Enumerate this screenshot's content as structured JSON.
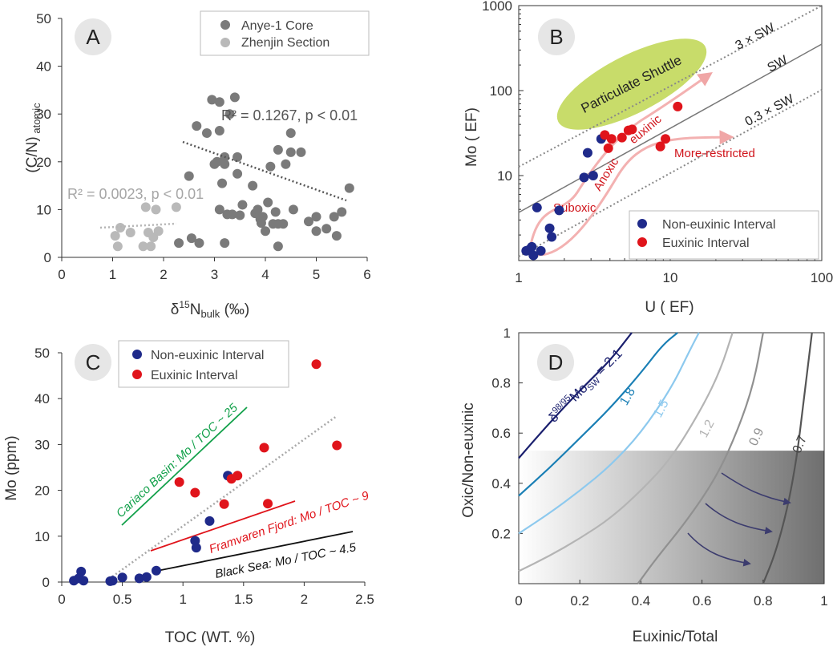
{
  "chart_data": [
    {
      "type": "scatter",
      "panel_label": "A",
      "xlabel": "δ15Nbulk (‰)",
      "ylabel": "(C/N) atomic",
      "xlim": [
        0,
        6
      ],
      "ylim": [
        0,
        50
      ],
      "xticks": [
        "0",
        "1",
        "2",
        "3",
        "4",
        "5",
        "6"
      ],
      "yticks": [
        "0",
        "10",
        "20",
        "30",
        "40",
        "50"
      ],
      "grid": false,
      "legend_position": "top-right",
      "series": [
        {
          "name": "Anye-1 Core",
          "color": "#7a7a7a",
          "points": [
            [
              2.3,
              3
            ],
            [
              2.5,
              17
            ],
            [
              2.55,
              4
            ],
            [
              2.65,
              27.5
            ],
            [
              2.7,
              3
            ],
            [
              2.85,
              26
            ],
            [
              2.95,
              33
            ],
            [
              3.0,
              19.5
            ],
            [
              3.05,
              20
            ],
            [
              3.1,
              26.5
            ],
            [
              3.1,
              32.5
            ],
            [
              3.1,
              10
            ],
            [
              3.15,
              15.5
            ],
            [
              3.2,
              21
            ],
            [
              3.2,
              19.5
            ],
            [
              3.2,
              3
            ],
            [
              3.25,
              9
            ],
            [
              3.3,
              30
            ],
            [
              3.35,
              9
            ],
            [
              3.4,
              33.5
            ],
            [
              3.45,
              21
            ],
            [
              3.45,
              17.5
            ],
            [
              3.5,
              8.8
            ],
            [
              3.55,
              11
            ],
            [
              3.75,
              15
            ],
            [
              3.8,
              9.2
            ],
            [
              3.85,
              10
            ],
            [
              3.9,
              8
            ],
            [
              3.92,
              7.2
            ],
            [
              3.95,
              8.5
            ],
            [
              4.0,
              5.5
            ],
            [
              4.05,
              11.5
            ],
            [
              4.1,
              19
            ],
            [
              4.15,
              7
            ],
            [
              4.2,
              9.5
            ],
            [
              4.25,
              7
            ],
            [
              4.25,
              2.3
            ],
            [
              4.25,
              22.5
            ],
            [
              4.35,
              7
            ],
            [
              4.4,
              19.5
            ],
            [
              4.5,
              26
            ],
            [
              4.5,
              22
            ],
            [
              4.55,
              10
            ],
            [
              4.7,
              22
            ],
            [
              4.85,
              7.5
            ],
            [
              5.0,
              8.5
            ],
            [
              5.0,
              5.5
            ],
            [
              5.2,
              6
            ],
            [
              5.35,
              8.5
            ],
            [
              5.4,
              4.5
            ],
            [
              5.5,
              9.5
            ],
            [
              5.65,
              14.5
            ]
          ]
        },
        {
          "name": "Zhenjin Section",
          "color": "#b9b9b9",
          "points": [
            [
              1.05,
              4.5
            ],
            [
              1.1,
              2.3
            ],
            [
              1.15,
              6.2
            ],
            [
              1.35,
              5.2
            ],
            [
              1.6,
              2.3
            ],
            [
              1.65,
              10.5
            ],
            [
              1.7,
              5.2
            ],
            [
              1.75,
              2.3
            ],
            [
              1.8,
              4.2
            ],
            [
              1.85,
              10
            ],
            [
              1.9,
              5.5
            ],
            [
              2.25,
              10.5
            ]
          ]
        }
      ],
      "annotations": [
        "R² = 0.1267, p < 0.01",
        "R² = 0.0023, p < 0.01"
      ]
    },
    {
      "type": "scatter",
      "panel_label": "B",
      "scale": "log-log",
      "xlabel": "U ( EF)",
      "ylabel": "Mo ( EF)",
      "xlim": [
        1,
        100
      ],
      "ylim": [
        1,
        1000
      ],
      "xticks": [
        "1",
        "10",
        "100"
      ],
      "yticks": [
        "10",
        "100",
        "1000"
      ],
      "legend_position": "bottom-right",
      "series": [
        {
          "name": "Non-euxinic Interval",
          "color": "#1f2a8a",
          "points": [
            [
              1.12,
              1.3
            ],
            [
              1.18,
              1.35
            ],
            [
              1.22,
              1.45
            ],
            [
              1.25,
              1.15
            ],
            [
              1.32,
              4.2
            ],
            [
              1.4,
              1.3
            ],
            [
              1.6,
              2.4
            ],
            [
              1.65,
              1.9
            ],
            [
              1.85,
              3.9
            ],
            [
              2.7,
              9.5
            ],
            [
              2.85,
              18.5
            ],
            [
              3.1,
              10
            ],
            [
              3.5,
              27
            ]
          ]
        },
        {
          "name": "Euxinic Interval",
          "color": "#e0141b",
          "points": [
            [
              3.7,
              30
            ],
            [
              3.9,
              21
            ],
            [
              4.1,
              27
            ],
            [
              4.8,
              28
            ],
            [
              5.3,
              34
            ],
            [
              5.6,
              35
            ],
            [
              8.6,
              22
            ],
            [
              9.3,
              27
            ],
            [
              11.2,
              65
            ]
          ]
        }
      ],
      "annotations": [
        "3 × SW",
        "SW",
        "0.3 × SW",
        "Particulate Shuttle",
        "Suboxic",
        "Anoxic",
        "euxinic",
        "More-restricted"
      ]
    },
    {
      "type": "scatter",
      "panel_label": "C",
      "xlabel": "TOC (WT. %)",
      "ylabel": "Mo (ppm)",
      "xlim": [
        0,
        2.5
      ],
      "ylim": [
        0,
        50
      ],
      "xticks": [
        "0",
        "0.5",
        "1",
        "1.5",
        "2",
        "2.5"
      ],
      "yticks": [
        "0",
        "10",
        "20",
        "30",
        "40",
        "50"
      ],
      "legend_position": "top-left",
      "series": [
        {
          "name": "Non-euxinic Interval",
          "color": "#1f2a8a",
          "points": [
            [
              0.1,
              0.3
            ],
            [
              0.14,
              0.8
            ],
            [
              0.16,
              2.3
            ],
            [
              0.18,
              0.3
            ],
            [
              0.4,
              0.2
            ],
            [
              0.42,
              0.3
            ],
            [
              0.5,
              1
            ],
            [
              0.64,
              0.8
            ],
            [
              0.7,
              1.1
            ],
            [
              0.78,
              2.5
            ],
            [
              1.1,
              9
            ],
            [
              1.11,
              7.5
            ],
            [
              1.22,
              13.3
            ],
            [
              1.37,
              23.2
            ]
          ]
        },
        {
          "name": "Euxinic Interval",
          "color": "#e0141b",
          "points": [
            [
              0.97,
              21.8
            ],
            [
              1.1,
              19.5
            ],
            [
              1.34,
              17
            ],
            [
              1.4,
              22.5
            ],
            [
              1.45,
              23.2
            ],
            [
              1.67,
              29.3
            ],
            [
              1.7,
              17.1
            ],
            [
              2.1,
              47.5
            ],
            [
              2.27,
              29.8
            ]
          ]
        }
      ],
      "annotations": [
        "Cariaco Basin: Mo / TOC ~ 25",
        "Framvaren Fjord: Mo / TOC ~ 9",
        "Black Sea: Mo / TOC ~ 4.5"
      ]
    },
    {
      "type": "line",
      "panel_label": "D",
      "xlabel": "Euxinic/Total",
      "ylabel": "Oxic/Non-euxinic",
      "xlim": [
        0,
        1
      ],
      "ylim": [
        0,
        1
      ],
      "xticks": [
        "0",
        "0.2",
        "0.4",
        "0.6",
        "0.8",
        "1"
      ],
      "yticks": [
        "0.2",
        "0.4",
        "0.6",
        "0.8",
        "1"
      ],
      "series": [
        {
          "name": "δ98/95MoSW = 2.1",
          "color": "#1a1f6e",
          "points": [
            [
              0,
              0.5
            ],
            [
              0.1,
              0.64
            ],
            [
              0.2,
              0.77
            ],
            [
              0.3,
              0.89
            ],
            [
              0.37,
              1.0
            ]
          ]
        },
        {
          "name": "1.8",
          "color": "#1a7fb5",
          "points": [
            [
              0,
              0.35
            ],
            [
              0.1,
              0.46
            ],
            [
              0.2,
              0.58
            ],
            [
              0.3,
              0.7
            ],
            [
              0.4,
              0.84
            ],
            [
              0.47,
              0.95
            ],
            [
              0.52,
              1.0
            ]
          ]
        },
        {
          "name": "1.5",
          "color": "#8dc9ee",
          "points": [
            [
              0,
              0.2
            ],
            [
              0.1,
              0.28
            ],
            [
              0.2,
              0.37
            ],
            [
              0.3,
              0.47
            ],
            [
              0.4,
              0.6
            ],
            [
              0.5,
              0.78
            ],
            [
              0.56,
              0.93
            ],
            [
              0.59,
              1.0
            ]
          ]
        },
        {
          "name": "1.2",
          "color": "#b4b4b4",
          "points": [
            [
              0,
              0.05
            ],
            [
              0.1,
              0.11
            ],
            [
              0.2,
              0.18
            ],
            [
              0.3,
              0.26
            ],
            [
              0.4,
              0.37
            ],
            [
              0.5,
              0.5
            ],
            [
              0.6,
              0.7
            ],
            [
              0.66,
              0.85
            ],
            [
              0.7,
              1.0
            ]
          ]
        },
        {
          "name": "0.9",
          "color": "#909090",
          "points": [
            [
              0.39,
              0
            ],
            [
              0.45,
              0.1
            ],
            [
              0.55,
              0.25
            ],
            [
              0.65,
              0.43
            ],
            [
              0.72,
              0.62
            ],
            [
              0.77,
              0.8
            ],
            [
              0.8,
              1.0
            ]
          ]
        },
        {
          "name": "0.7",
          "color": "#555555",
          "points": [
            [
              0.8,
              0
            ],
            [
              0.84,
              0.12
            ],
            [
              0.88,
              0.3
            ],
            [
              0.91,
              0.5
            ],
            [
              0.93,
              0.7
            ],
            [
              0.95,
              0.9
            ],
            [
              0.96,
              1.0
            ]
          ]
        }
      ],
      "shaded_region": {
        "x": [
          0,
          1
        ],
        "y": [
          0,
          0.53
        ]
      }
    }
  ]
}
